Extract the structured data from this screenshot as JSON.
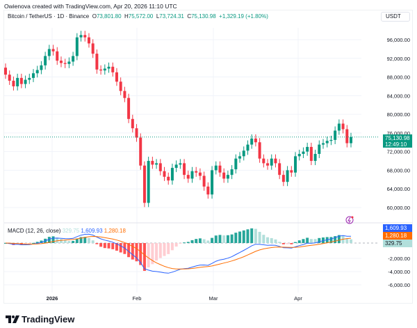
{
  "caption": "Owienova created with TradingView.com, Apr 20, 2026 11:10 UTC",
  "symbol": {
    "name": "Bitcoin / TetherUS · 1D · Binance",
    "open_label": "O",
    "open": "73,801.80",
    "high_label": "H",
    "high": "75,572.00",
    "low_label": "L",
    "low": "73,724.31",
    "close_label": "C",
    "close": "75,130.98",
    "change": "+1,329.19 (+1.80%)"
  },
  "currency": "USDT",
  "price_tag": {
    "price": "75,130.98",
    "countdown": "12:49:10"
  },
  "macd": {
    "title": "MACD (12, 26, close)",
    "histogram": "329.75",
    "macd": "1,609.93",
    "signal": "1,280.18"
  },
  "brand": "TradingView",
  "colors": {
    "up": "#089981",
    "down": "#f23645",
    "macd": "#2962ff",
    "signal": "#ff6d00",
    "hist_light": "#b2dfdb"
  },
  "chart_data": [
    {
      "type": "candlestick",
      "title": "Bitcoin / TetherUS · 1D · Binance",
      "y_ticks": [
        "96,000.00",
        "92,000.00",
        "88,000.00",
        "84,000.00",
        "80,000.00",
        "76,000.00",
        "72,000.00",
        "68,000.00",
        "64,000.00",
        "60,000.00"
      ],
      "x_ticks": [
        "2026",
        "Feb",
        "Mar",
        "Apr"
      ],
      "ylim": [
        58000,
        99000
      ],
      "last_price": 75130.98,
      "approx_closes": [
        88500,
        87200,
        86000,
        87800,
        86500,
        87400,
        87800,
        88800,
        89500,
        90500,
        92500,
        94000,
        93500,
        91500,
        91000,
        90800,
        91300,
        92500,
        96500,
        97000,
        96500,
        95200,
        93000,
        89600,
        89400,
        89800,
        90200,
        89000,
        87000,
        85000,
        83500,
        79000,
        77000,
        75000,
        69000,
        61000,
        70000,
        69200,
        69500,
        67800,
        66600,
        65800,
        68500,
        69200,
        69500,
        67000,
        66200,
        67800,
        67500,
        66800,
        64500,
        62800,
        68000,
        69000,
        67500,
        66200,
        67000,
        68200,
        70500,
        71000,
        72200,
        73500,
        74800,
        74000,
        70500,
        69500,
        69000,
        70500,
        69500,
        67000,
        65500,
        68000,
        67500,
        71000,
        71500,
        72000,
        73000,
        70000,
        71500,
        73500,
        73800,
        74300,
        74500,
        76500,
        78000,
        76800,
        73800,
        75130
      ]
    },
    {
      "type": "line",
      "title": "MACD (12, 26, close)",
      "y_ticks": [
        "-2,000.00",
        "-4,000.00",
        "-6,000.00"
      ],
      "series": [
        {
          "name": "MACD",
          "last": 1609.93
        },
        {
          "name": "Signal",
          "last": 1280.18
        },
        {
          "name": "Histogram",
          "last": 329.75
        }
      ]
    }
  ]
}
